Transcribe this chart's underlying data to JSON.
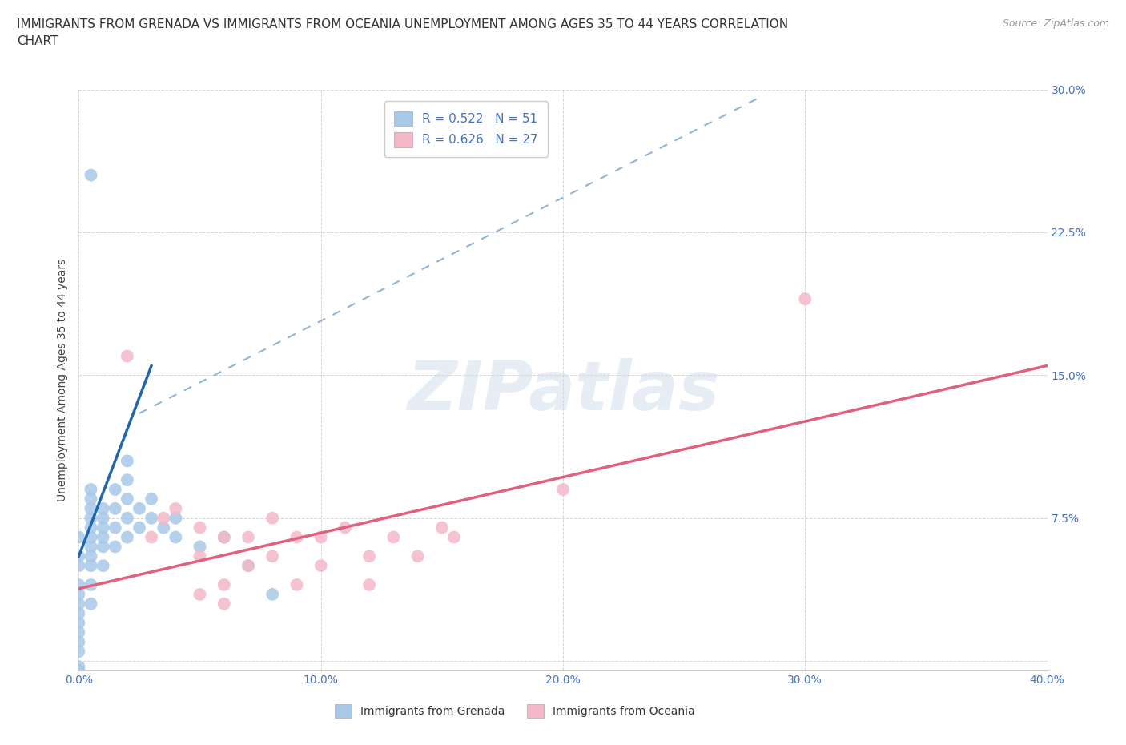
{
  "title": "IMMIGRANTS FROM GRENADA VS IMMIGRANTS FROM OCEANIA UNEMPLOYMENT AMONG AGES 35 TO 44 YEARS CORRELATION\nCHART",
  "source": "Source: ZipAtlas.com",
  "ylabel": "Unemployment Among Ages 35 to 44 years",
  "xlim": [
    0.0,
    0.4
  ],
  "ylim": [
    -0.005,
    0.3
  ],
  "xticks": [
    0.0,
    0.1,
    0.2,
    0.3,
    0.4
  ],
  "yticks": [
    0.0,
    0.075,
    0.15,
    0.225,
    0.3
  ],
  "xtick_labels": [
    "0.0%",
    "10.0%",
    "20.0%",
    "30.0%",
    "40.0%"
  ],
  "ytick_labels": [
    "",
    "7.5%",
    "15.0%",
    "22.5%",
    "30.0%"
  ],
  "grenada_R": 0.522,
  "grenada_N": 51,
  "oceania_R": 0.626,
  "oceania_N": 27,
  "grenada_color": "#a8c8e8",
  "oceania_color": "#f4b8c8",
  "grenada_scatter": [
    [
      0.0,
      -0.003
    ],
    [
      0.0,
      0.005
    ],
    [
      0.0,
      0.01
    ],
    [
      0.0,
      0.015
    ],
    [
      0.0,
      0.02
    ],
    [
      0.0,
      0.025
    ],
    [
      0.0,
      0.03
    ],
    [
      0.0,
      0.035
    ],
    [
      0.0,
      0.04
    ],
    [
      0.0,
      0.05
    ],
    [
      0.0,
      0.055
    ],
    [
      0.0,
      0.065
    ],
    [
      0.005,
      0.03
    ],
    [
      0.005,
      0.04
    ],
    [
      0.005,
      0.05
    ],
    [
      0.005,
      0.055
    ],
    [
      0.005,
      0.06
    ],
    [
      0.005,
      0.065
    ],
    [
      0.005,
      0.07
    ],
    [
      0.005,
      0.075
    ],
    [
      0.005,
      0.08
    ],
    [
      0.005,
      0.085
    ],
    [
      0.005,
      0.09
    ],
    [
      0.01,
      0.05
    ],
    [
      0.01,
      0.06
    ],
    [
      0.01,
      0.065
    ],
    [
      0.01,
      0.07
    ],
    [
      0.01,
      0.075
    ],
    [
      0.01,
      0.08
    ],
    [
      0.015,
      0.06
    ],
    [
      0.015,
      0.07
    ],
    [
      0.015,
      0.08
    ],
    [
      0.015,
      0.09
    ],
    [
      0.02,
      0.065
    ],
    [
      0.02,
      0.075
    ],
    [
      0.02,
      0.085
    ],
    [
      0.02,
      0.095
    ],
    [
      0.02,
      0.105
    ],
    [
      0.025,
      0.07
    ],
    [
      0.025,
      0.08
    ],
    [
      0.03,
      0.075
    ],
    [
      0.03,
      0.085
    ],
    [
      0.035,
      0.07
    ],
    [
      0.04,
      0.065
    ],
    [
      0.04,
      0.075
    ],
    [
      0.05,
      0.06
    ],
    [
      0.06,
      0.065
    ],
    [
      0.07,
      0.05
    ],
    [
      0.08,
      0.035
    ],
    [
      0.005,
      0.255
    ],
    [
      0.0,
      -0.005
    ]
  ],
  "oceania_scatter": [
    [
      0.02,
      0.16
    ],
    [
      0.03,
      0.065
    ],
    [
      0.035,
      0.075
    ],
    [
      0.04,
      0.08
    ],
    [
      0.05,
      0.07
    ],
    [
      0.05,
      0.055
    ],
    [
      0.06,
      0.065
    ],
    [
      0.06,
      0.04
    ],
    [
      0.07,
      0.065
    ],
    [
      0.07,
      0.05
    ],
    [
      0.08,
      0.075
    ],
    [
      0.08,
      0.055
    ],
    [
      0.09,
      0.065
    ],
    [
      0.09,
      0.04
    ],
    [
      0.1,
      0.065
    ],
    [
      0.1,
      0.05
    ],
    [
      0.11,
      0.07
    ],
    [
      0.12,
      0.055
    ],
    [
      0.12,
      0.04
    ],
    [
      0.13,
      0.065
    ],
    [
      0.14,
      0.055
    ],
    [
      0.15,
      0.07
    ],
    [
      0.155,
      0.065
    ],
    [
      0.2,
      0.09
    ],
    [
      0.3,
      0.19
    ],
    [
      0.05,
      0.035
    ],
    [
      0.06,
      0.03
    ]
  ],
  "grenada_solid_line": [
    [
      0.0,
      0.055
    ],
    [
      0.03,
      0.155
    ]
  ],
  "grenada_dashed_line": [
    [
      0.025,
      0.13
    ],
    [
      0.28,
      0.295
    ]
  ],
  "oceania_line": [
    [
      0.0,
      0.038
    ],
    [
      0.4,
      0.155
    ]
  ],
  "watermark_text": "ZIPatlas",
  "background_color": "#ffffff",
  "grid_color": "#cccccc",
  "title_fontsize": 11,
  "axis_label_fontsize": 10,
  "tick_fontsize": 10,
  "tick_color": "#4472c4",
  "legend_fontsize": 11
}
